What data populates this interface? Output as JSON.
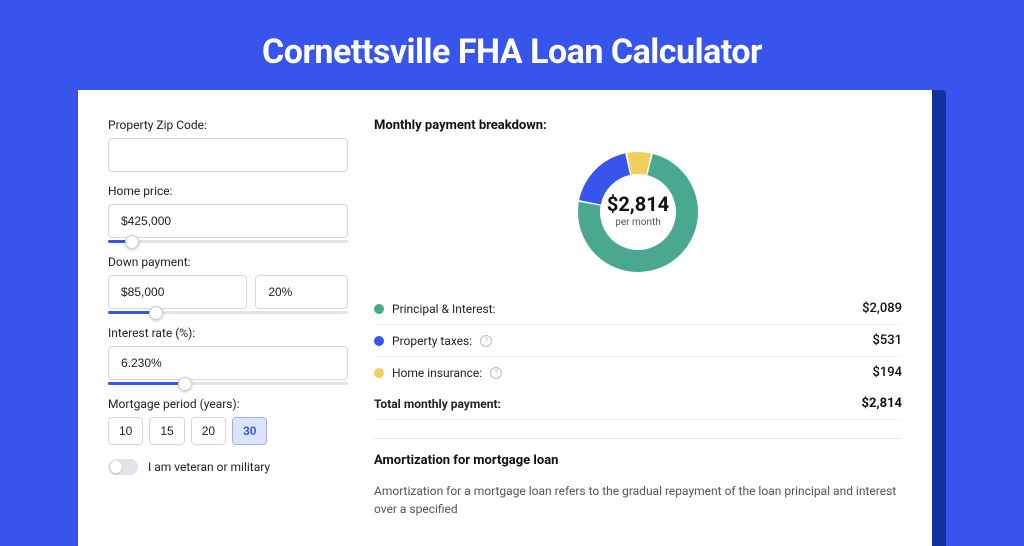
{
  "page_title": "Cornettsville FHA Loan Calculator",
  "colors": {
    "bg": "#3755ed",
    "shadow": "#11329d",
    "principal": "#4aa890",
    "taxes": "#3755ed",
    "insurance": "#f0cf5f"
  },
  "form": {
    "zip_label": "Property Zip Code:",
    "zip_value": "",
    "price_label": "Home price:",
    "price_value": "$425,000",
    "price_slider_pct": 10,
    "down_label": "Down payment:",
    "down_value": "$85,000",
    "down_pct_value": "20%",
    "down_slider_pct": 20,
    "rate_label": "Interest rate (%):",
    "rate_value": "6.230%",
    "rate_slider_pct": 32,
    "period_label": "Mortgage period (years):",
    "period_options": [
      "10",
      "15",
      "20",
      "30"
    ],
    "period_selected": "30",
    "veteran_label": "I am veteran or military"
  },
  "breakdown": {
    "title": "Monthly payment breakdown:",
    "donut": {
      "center_amount": "$2,814",
      "center_sub": "per month",
      "segments": [
        {
          "label": "Principal & Interest",
          "value": 2089,
          "color": "#4aa890",
          "pct": 74.2
        },
        {
          "label": "Property taxes",
          "value": 531,
          "color": "#3755ed",
          "pct": 18.9
        },
        {
          "label": "Home insurance",
          "value": 194,
          "color": "#f0cf5f",
          "pct": 6.9
        }
      ]
    },
    "rows": [
      {
        "label": "Principal & Interest:",
        "value": "$2,089",
        "dot": "#4aa890",
        "info": false
      },
      {
        "label": "Property taxes:",
        "value": "$531",
        "dot": "#3755ed",
        "info": true
      },
      {
        "label": "Home insurance:",
        "value": "$194",
        "dot": "#f0cf5f",
        "info": true
      }
    ],
    "total_label": "Total monthly payment:",
    "total_value": "$2,814"
  },
  "amort": {
    "title": "Amortization for mortgage loan",
    "text": "Amortization for a mortgage loan refers to the gradual repayment of the loan principal and interest over a specified"
  }
}
